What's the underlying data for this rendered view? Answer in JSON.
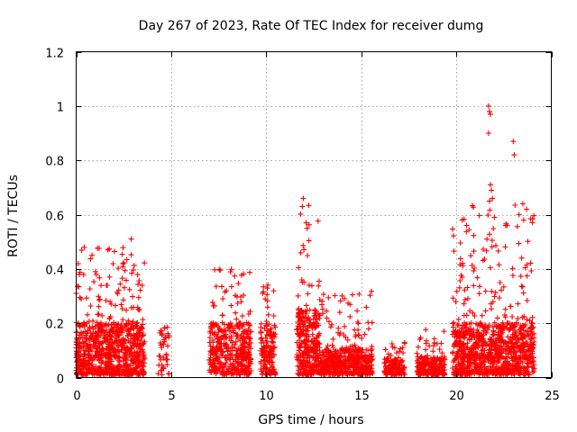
{
  "chart_data": {
    "type": "scatter",
    "title": "Day 267 of 2023, Rate Of TEC Index for receiver dumg",
    "xlabel": "GPS time / hours",
    "ylabel": "ROTI / TECUs",
    "xlim": [
      0,
      25
    ],
    "ylim": [
      0,
      1.2
    ],
    "xticks": [
      "0",
      "5",
      "10",
      "15",
      "20",
      "25"
    ],
    "yticks": [
      "0",
      "0.2",
      "0.4",
      "0.6",
      "0.8",
      "1",
      "1.2"
    ],
    "grid": true,
    "marker": "plus",
    "color": "#ff0000",
    "segments": [
      {
        "start": 0.0,
        "end": 3.6,
        "base": 0.12,
        "peak": 0.48,
        "density": 900
      },
      {
        "start": 4.3,
        "end": 4.9,
        "base": 0.11,
        "peak": 0.2,
        "density": 40
      },
      {
        "start": 7.0,
        "end": 9.2,
        "base": 0.12,
        "peak": 0.41,
        "density": 420
      },
      {
        "start": 9.7,
        "end": 10.5,
        "base": 0.12,
        "peak": 0.35,
        "density": 150
      },
      {
        "start": 11.6,
        "end": 12.8,
        "base": 0.15,
        "peak": 0.66,
        "density": 320
      },
      {
        "start": 12.8,
        "end": 15.6,
        "base": 0.06,
        "peak": 0.32,
        "density": 520
      },
      {
        "start": 16.2,
        "end": 17.3,
        "base": 0.04,
        "peak": 0.13,
        "density": 130
      },
      {
        "start": 17.9,
        "end": 19.4,
        "base": 0.04,
        "peak": 0.18,
        "density": 230
      },
      {
        "start": 19.8,
        "end": 24.1,
        "base": 0.12,
        "peak": 0.64,
        "density": 1000
      }
    ],
    "outliers": [
      {
        "x": 2.9,
        "y": 0.51
      },
      {
        "x": 11.9,
        "y": 0.63
      },
      {
        "x": 11.95,
        "y": 0.66
      },
      {
        "x": 12.1,
        "y": 0.57
      },
      {
        "x": 12.15,
        "y": 0.55
      },
      {
        "x": 21.7,
        "y": 1.0
      },
      {
        "x": 21.75,
        "y": 0.98
      },
      {
        "x": 21.8,
        "y": 0.97
      },
      {
        "x": 21.7,
        "y": 0.9
      },
      {
        "x": 21.8,
        "y": 0.71
      },
      {
        "x": 21.85,
        "y": 0.69
      },
      {
        "x": 21.9,
        "y": 0.66
      },
      {
        "x": 21.75,
        "y": 0.65
      },
      {
        "x": 23.0,
        "y": 0.87
      },
      {
        "x": 23.05,
        "y": 0.82
      },
      {
        "x": 23.5,
        "y": 0.64
      },
      {
        "x": 23.7,
        "y": 0.62
      },
      {
        "x": 23.3,
        "y": 0.6
      },
      {
        "x": 23.55,
        "y": 0.58
      },
      {
        "x": 22.6,
        "y": 0.56
      },
      {
        "x": 22.0,
        "y": 0.59
      }
    ]
  }
}
